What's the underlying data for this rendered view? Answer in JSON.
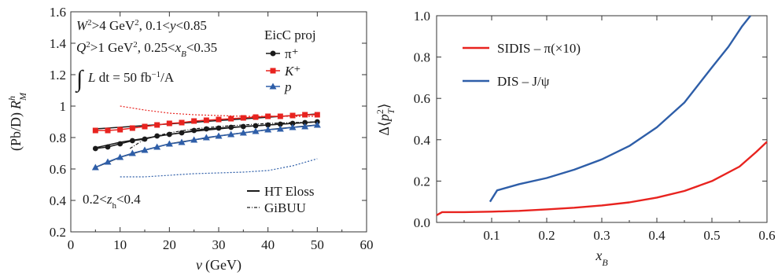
{
  "chart_data": [
    {
      "type": "scatter",
      "xlabel_var": "ν",
      "xlabel_unit": "(GeV)",
      "ylabel_prefix": "(Pb/D)",
      "ylabel_R": "R",
      "ylabel_sup": "h",
      "ylabel_sub": "M",
      "xlim": [
        0,
        60
      ],
      "ylim": [
        0.2,
        1.6
      ],
      "xticks": [
        0,
        10,
        20,
        30,
        40,
        50,
        60
      ],
      "yticks": [
        0.2,
        0.4,
        0.6,
        0.8,
        1,
        1.2,
        1.4,
        1.6
      ],
      "annotations": {
        "line1": "W²>4 GeV², 0.1<y<0.85",
        "line2": "Q²>1 GeV², 0.25<x_B<0.35",
        "lumi": "∫L dt = 50 fb⁻¹/A",
        "zh": "0.2<z_h<0.4"
      },
      "legend_title": "EicC proj",
      "legend_top": [
        {
          "label": "π⁺",
          "marker": "circle",
          "color": "#1a1a1a"
        },
        {
          "label": "K⁺",
          "marker": "square",
          "color": "#e8231f"
        },
        {
          "label": "p",
          "marker": "triangle",
          "color": "#2e5ea8"
        }
      ],
      "legend_bottom": [
        {
          "label": "HT Eloss",
          "style": "solid"
        },
        {
          "label": "GiBUU",
          "style": "dashdot"
        }
      ],
      "series": [
        {
          "name": "π⁺",
          "marker": "circle",
          "color": "#1a1a1a",
          "x": [
            5,
            7.5,
            10,
            12.5,
            15,
            17.5,
            20,
            22.5,
            25,
            27.5,
            30,
            32.5,
            35,
            37.5,
            40,
            42.5,
            45,
            47.5,
            50
          ],
          "y": [
            0.73,
            0.74,
            0.76,
            0.78,
            0.79,
            0.81,
            0.82,
            0.83,
            0.845,
            0.855,
            0.86,
            0.865,
            0.87,
            0.875,
            0.88,
            0.885,
            0.89,
            0.895,
            0.9
          ]
        },
        {
          "name": "K⁺",
          "marker": "square",
          "color": "#e8231f",
          "x": [
            5,
            7.5,
            10,
            12.5,
            15,
            17.5,
            20,
            22.5,
            25,
            27.5,
            30,
            32.5,
            35,
            37.5,
            40,
            42.5,
            45,
            47.5,
            50
          ],
          "y": [
            0.845,
            0.845,
            0.85,
            0.86,
            0.87,
            0.88,
            0.89,
            0.895,
            0.905,
            0.91,
            0.915,
            0.92,
            0.925,
            0.93,
            0.935,
            0.935,
            0.94,
            0.945,
            0.945
          ]
        },
        {
          "name": "p",
          "marker": "triangle",
          "color": "#2e5ea8",
          "x": [
            5,
            7.5,
            10,
            12.5,
            15,
            17.5,
            20,
            22.5,
            25,
            27.5,
            30,
            32.5,
            35,
            37.5,
            40,
            42.5,
            45,
            47.5,
            50
          ],
          "y": [
            0.61,
            0.645,
            0.675,
            0.7,
            0.72,
            0.74,
            0.76,
            0.77,
            0.785,
            0.8,
            0.81,
            0.82,
            0.83,
            0.84,
            0.85,
            0.855,
            0.865,
            0.87,
            0.88
          ]
        }
      ],
      "curves": [
        {
          "label": "HT Eloss",
          "style": "solid",
          "color": "#1a1a1a",
          "x": [
            5,
            50
          ],
          "y": [
            0.855,
            0.95
          ]
        },
        {
          "label": "HT Eloss",
          "style": "solid",
          "color": "#1a1a1a",
          "x": [
            5,
            10,
            15,
            20,
            25,
            30,
            35,
            40,
            45,
            50
          ],
          "y": [
            0.735,
            0.77,
            0.795,
            0.82,
            0.84,
            0.855,
            0.87,
            0.88,
            0.89,
            0.9
          ]
        },
        {
          "label": "HT Eloss",
          "style": "solid",
          "color": "#1a1a1a",
          "x": [
            5,
            10,
            15,
            20,
            25,
            30,
            35,
            40,
            45,
            50
          ],
          "y": [
            0.61,
            0.675,
            0.72,
            0.76,
            0.785,
            0.81,
            0.83,
            0.85,
            0.865,
            0.88
          ]
        },
        {
          "label": "GiBUU",
          "style": "dashdot",
          "color": "#1a1a1a",
          "x": [
            12,
            15,
            20,
            25,
            30,
            35,
            40,
            45,
            50
          ],
          "y": [
            0.73,
            0.79,
            0.83,
            0.855,
            0.87,
            0.88,
            0.89,
            0.895,
            0.9
          ]
        },
        {
          "label": "GiBUU red",
          "style": "dotted",
          "color": "#e8231f",
          "x": [
            10,
            15,
            20,
            25,
            30,
            35,
            40,
            45,
            50
          ],
          "y": [
            1.0,
            0.975,
            0.955,
            0.945,
            0.94,
            0.935,
            0.935,
            0.935,
            0.935
          ]
        },
        {
          "label": "GiBUU blue",
          "style": "dotted",
          "color": "#2e5ea8",
          "x": [
            10,
            15,
            20,
            25,
            30,
            35,
            40,
            45,
            50
          ],
          "y": [
            0.55,
            0.55,
            0.56,
            0.57,
            0.575,
            0.58,
            0.59,
            0.62,
            0.665
          ]
        }
      ]
    },
    {
      "type": "line",
      "xlabel": "x",
      "xlabel_sub": "B",
      "ylabel_delta": "Δ",
      "ylabel_p": "p",
      "ylabel_sup": "2",
      "ylabel_sub": "T",
      "xlim": [
        0,
        0.6
      ],
      "ylim": [
        0,
        1.0
      ],
      "xticks": [
        "0.1",
        "0.2",
        "0.3",
        "0.4",
        "0.5",
        "0.6"
      ],
      "xtick_values": [
        0.1,
        0.2,
        0.3,
        0.4,
        0.5,
        0.6
      ],
      "yticks": [
        "0.0",
        "0.2",
        "0.4",
        "0.6",
        "0.8",
        "1.0"
      ],
      "ytick_values": [
        0,
        0.2,
        0.4,
        0.6,
        0.8,
        1.0
      ],
      "series": [
        {
          "name": "SIDIS – π(×10)",
          "color": "#e8231f",
          "x": [
            0,
            0.01,
            0.02,
            0.05,
            0.1,
            0.15,
            0.2,
            0.25,
            0.3,
            0.35,
            0.4,
            0.45,
            0.5,
            0.55,
            0.58,
            0.6
          ],
          "y": [
            0.035,
            0.05,
            0.05,
            0.05,
            0.052,
            0.056,
            0.063,
            0.071,
            0.082,
            0.097,
            0.12,
            0.152,
            0.2,
            0.27,
            0.34,
            0.39
          ]
        },
        {
          "name": "DIS – J/ψ",
          "color": "#2e5ea8",
          "x": [
            0.097,
            0.11,
            0.15,
            0.2,
            0.25,
            0.3,
            0.35,
            0.4,
            0.45,
            0.5,
            0.53,
            0.555,
            0.57
          ],
          "y": [
            0.1,
            0.155,
            0.185,
            0.215,
            0.255,
            0.305,
            0.37,
            0.46,
            0.58,
            0.75,
            0.85,
            0.95,
            1.0
          ]
        }
      ]
    }
  ]
}
